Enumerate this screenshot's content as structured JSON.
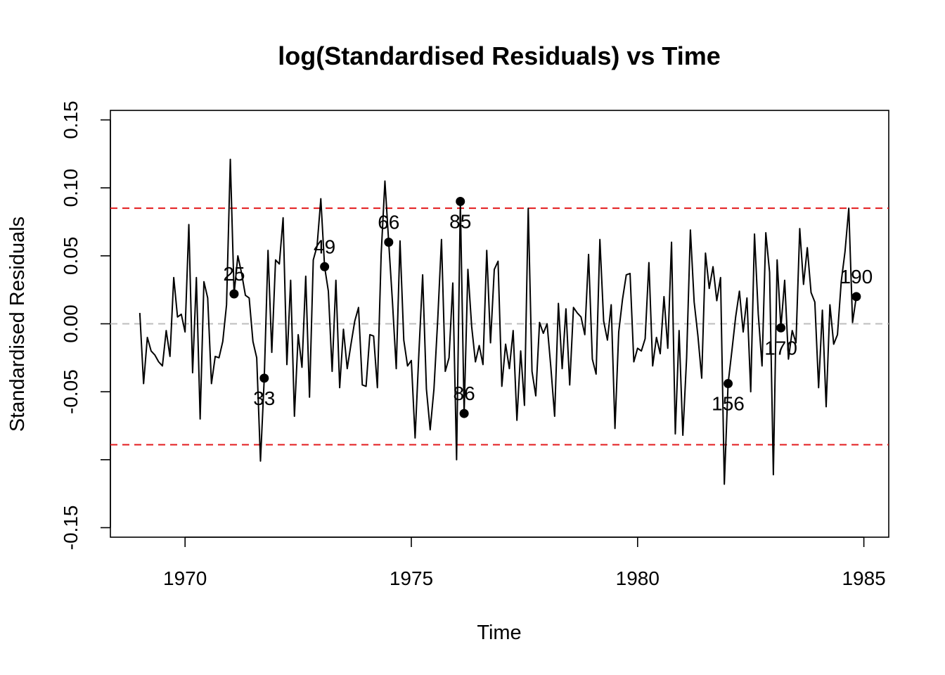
{
  "chart_data": {
    "type": "line",
    "title": "log(Standardised Residuals) vs Time",
    "xlabel": "Time",
    "ylabel": "Standardised Residuals",
    "xlim": [
      1968.35,
      1985.55
    ],
    "ylim": [
      -0.157,
      0.157
    ],
    "x_ticks": [
      1970,
      1975,
      1980,
      1985
    ],
    "x_tick_labels": [
      "1970",
      "1975",
      "1980",
      "1985"
    ],
    "y_ticks": [
      -0.15,
      -0.1,
      -0.05,
      0.0,
      0.05,
      0.1,
      0.15
    ],
    "y_tick_labels": [
      "-0.15",
      "",
      "-0.05",
      "0.00",
      "0.05",
      "0.10",
      "0.15"
    ],
    "grid": false,
    "start": 1969.0,
    "frequency": 12,
    "series": [
      {
        "values": [
          0.008,
          -0.044,
          -0.01,
          -0.02,
          -0.023,
          -0.028,
          -0.031,
          -0.005,
          -0.024,
          0.034,
          0.005,
          0.007,
          -0.006,
          0.073,
          -0.036,
          0.034,
          -0.07,
          0.031,
          0.019,
          -0.044,
          -0.024,
          -0.025,
          -0.013,
          0.014,
          0.121,
          0.022,
          0.05,
          0.037,
          0.021,
          0.019,
          -0.013,
          -0.025,
          -0.101,
          -0.04,
          0.054,
          -0.021,
          0.047,
          0.044,
          0.078,
          -0.03,
          0.032,
          -0.068,
          -0.008,
          -0.032,
          0.035,
          -0.054,
          0.047,
          0.057,
          0.092,
          0.042,
          0.024,
          -0.035,
          0.032,
          -0.047,
          -0.004,
          -0.033,
          -0.015,
          0.002,
          0.012,
          -0.045,
          -0.046,
          -0.008,
          -0.009,
          -0.047,
          0.051,
          0.105,
          0.06,
          0.016,
          -0.033,
          0.061,
          -0.012,
          -0.031,
          -0.027,
          -0.084,
          -0.022,
          0.036,
          -0.048,
          -0.078,
          -0.048,
          0.003,
          0.062,
          -0.035,
          -0.025,
          0.03,
          -0.1,
          0.09,
          -0.066,
          0.04,
          -0.002,
          -0.028,
          -0.016,
          -0.03,
          0.054,
          -0.014,
          0.04,
          0.046,
          -0.046,
          -0.015,
          -0.033,
          -0.005,
          -0.071,
          -0.02,
          -0.06,
          0.085,
          -0.035,
          -0.053,
          0.001,
          -0.007,
          0.0,
          -0.032,
          -0.068,
          0.015,
          -0.033,
          0.011,
          -0.045,
          0.012,
          0.008,
          0.005,
          -0.008,
          0.051,
          -0.026,
          -0.037,
          0.062,
          0.002,
          -0.012,
          0.014,
          -0.077,
          -0.006,
          0.018,
          0.036,
          0.037,
          -0.028,
          -0.018,
          -0.02,
          -0.011,
          0.045,
          -0.031,
          -0.01,
          -0.022,
          0.02,
          -0.018,
          0.06,
          -0.081,
          -0.005,
          -0.082,
          -0.025,
          0.069,
          0.016,
          -0.009,
          -0.04,
          0.052,
          0.026,
          0.042,
          0.017,
          0.034,
          -0.118,
          -0.044,
          -0.02,
          0.005,
          0.024,
          -0.006,
          0.019,
          -0.05,
          0.066,
          0.007,
          -0.031,
          0.067,
          0.038,
          -0.111,
          0.047,
          -0.003,
          0.032,
          -0.026,
          -0.005,
          -0.014,
          0.07,
          0.029,
          0.056,
          0.023,
          0.016,
          -0.047,
          0.01,
          -0.061,
          0.014,
          -0.015,
          -0.008,
          0.031,
          0.053,
          0.085,
          0.001,
          0.02
        ]
      }
    ],
    "threshold_lines": [
      {
        "y": 0.085,
        "color": "#e31a1c",
        "style": "dashed"
      },
      {
        "y": -0.089,
        "color": "#e31a1c",
        "style": "dashed"
      }
    ],
    "zero_line": {
      "y": 0.0,
      "color": "#bebebe",
      "style": "dashed"
    },
    "annotated_points": [
      {
        "index": 25,
        "label": "25",
        "position": "above"
      },
      {
        "index": 33,
        "label": "33",
        "position": "below"
      },
      {
        "index": 49,
        "label": "49",
        "position": "above"
      },
      {
        "index": 66,
        "label": "66",
        "position": "above"
      },
      {
        "index": 85,
        "label": "85",
        "position": "below"
      },
      {
        "index": 86,
        "label": "86",
        "position": "above"
      },
      {
        "index": 156,
        "label": "156",
        "position": "below"
      },
      {
        "index": 170,
        "label": "170",
        "position": "below"
      },
      {
        "index": 190,
        "label": "190",
        "position": "above"
      }
    ],
    "colors": {
      "line": "#000000",
      "points": "#000000",
      "threshold": "#e31a1c",
      "zero": "#bebebe"
    }
  }
}
